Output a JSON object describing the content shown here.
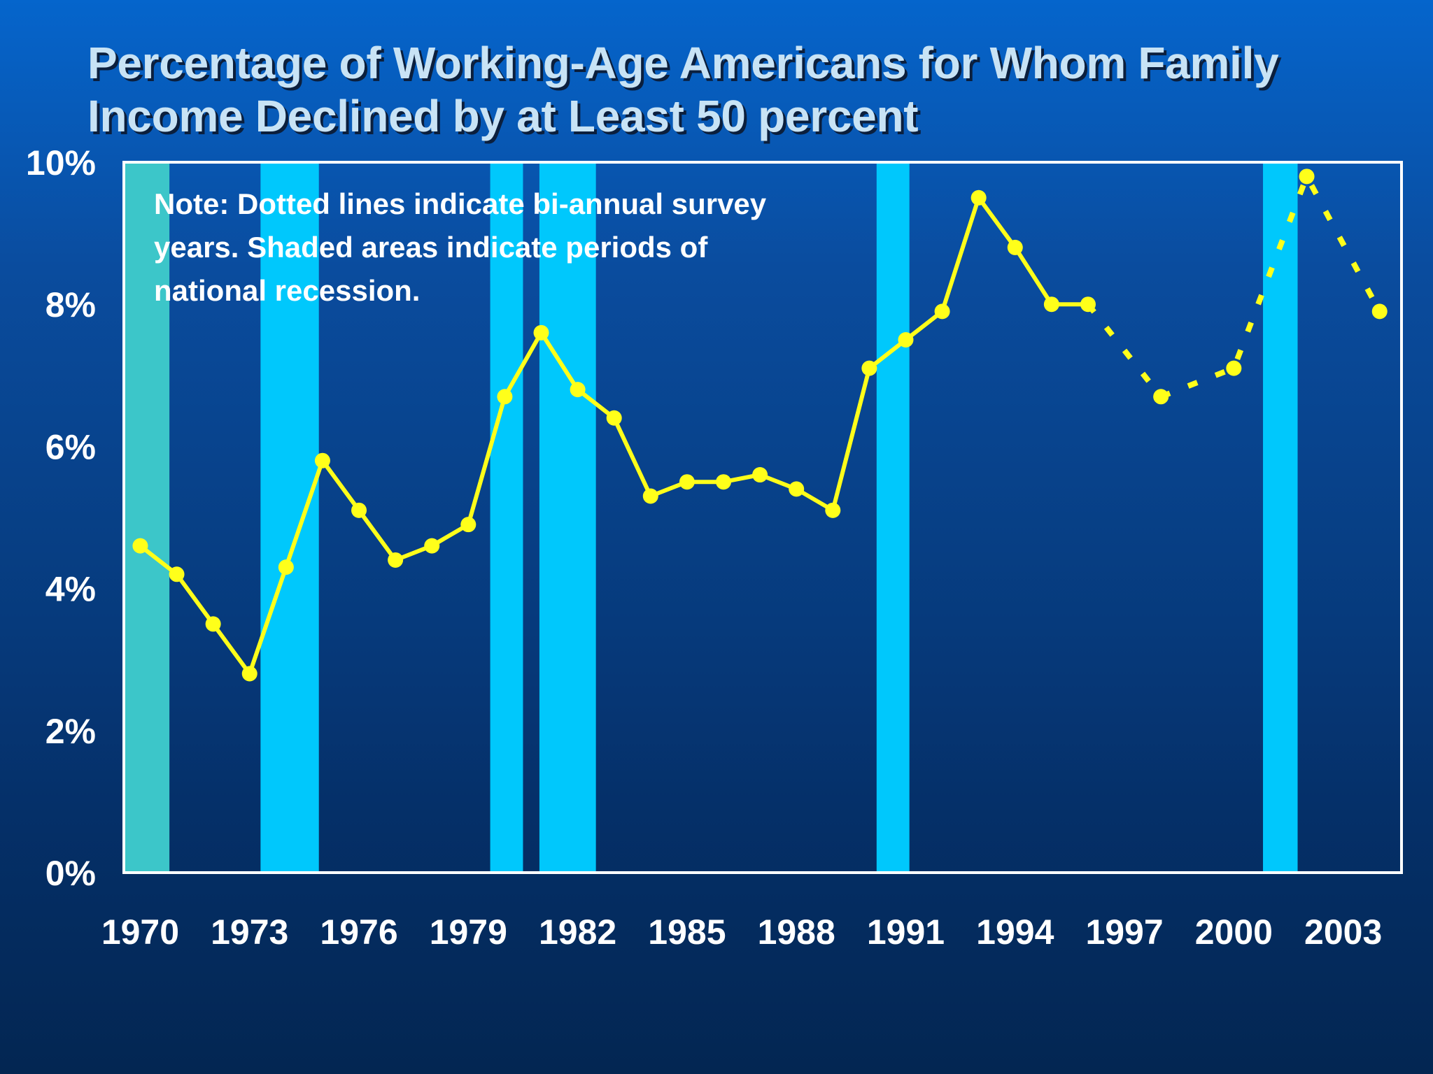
{
  "chart_data": {
    "type": "line",
    "title_lines": [
      "Percentage of Working-Age Americans for Whom Family",
      "Income Declined by at Least 50 percent"
    ],
    "note_lines": [
      "Note: Dotted lines indicate bi-annual survey",
      "years. Shaded areas indicate periods of",
      "national recession."
    ],
    "ylim": [
      0,
      10
    ],
    "xlim": [
      1969.55,
      2004.6
    ],
    "y_ticks": [
      {
        "value": 0,
        "label": "0%"
      },
      {
        "value": 2,
        "label": "2%"
      },
      {
        "value": 4,
        "label": "4%"
      },
      {
        "value": 6,
        "label": "6%"
      },
      {
        "value": 8,
        "label": "8%"
      },
      {
        "value": 10,
        "label": "10%"
      }
    ],
    "x_ticks": [
      {
        "value": 1970,
        "label": "1970"
      },
      {
        "value": 1973,
        "label": "1973"
      },
      {
        "value": 1976,
        "label": "1976"
      },
      {
        "value": 1979,
        "label": "1979"
      },
      {
        "value": 1982,
        "label": "1982"
      },
      {
        "value": 1985,
        "label": "1985"
      },
      {
        "value": 1988,
        "label": "1988"
      },
      {
        "value": 1991,
        "label": "1991"
      },
      {
        "value": 1994,
        "label": "1994"
      },
      {
        "value": 1997,
        "label": "1997"
      },
      {
        "value": 2000,
        "label": "2000"
      },
      {
        "value": 2003,
        "label": "2003"
      }
    ],
    "recessions": [
      {
        "start": 1969.55,
        "end": 1970.8,
        "color": "#3cc6c9"
      },
      {
        "start": 1973.3,
        "end": 1974.9,
        "color": "#00c8fc"
      },
      {
        "start": 1979.6,
        "end": 1980.5,
        "color": "#00c8fc"
      },
      {
        "start": 1980.95,
        "end": 1982.5,
        "color": "#00c8fc"
      },
      {
        "start": 1990.2,
        "end": 1991.1,
        "color": "#00c8fc"
      },
      {
        "start": 2000.8,
        "end": 2001.75,
        "color": "#00c8fc"
      }
    ],
    "series": [
      {
        "color": "#ffff1a",
        "points": [
          {
            "x": 1970,
            "y": 4.6
          },
          {
            "x": 1971,
            "y": 4.2
          },
          {
            "x": 1972,
            "y": 3.5
          },
          {
            "x": 1973,
            "y": 2.8
          },
          {
            "x": 1974,
            "y": 4.3
          },
          {
            "x": 1975,
            "y": 5.8
          },
          {
            "x": 1976,
            "y": 5.1
          },
          {
            "x": 1977,
            "y": 4.4
          },
          {
            "x": 1978,
            "y": 4.6
          },
          {
            "x": 1979,
            "y": 4.9
          },
          {
            "x": 1980,
            "y": 6.7
          },
          {
            "x": 1981,
            "y": 7.6
          },
          {
            "x": 1982,
            "y": 6.8
          },
          {
            "x": 1983,
            "y": 6.4
          },
          {
            "x": 1984,
            "y": 5.3
          },
          {
            "x": 1985,
            "y": 5.5
          },
          {
            "x": 1986,
            "y": 5.5
          },
          {
            "x": 1987,
            "y": 5.6
          },
          {
            "x": 1988,
            "y": 5.4
          },
          {
            "x": 1989,
            "y": 5.1
          },
          {
            "x": 1990,
            "y": 7.1
          },
          {
            "x": 1991,
            "y": 7.5
          },
          {
            "x": 1992,
            "y": 7.9
          },
          {
            "x": 1993,
            "y": 9.5
          },
          {
            "x": 1994,
            "y": 8.8
          },
          {
            "x": 1995,
            "y": 8.0
          },
          {
            "x": 1996,
            "y": 8.0
          },
          {
            "x": 1998,
            "y": 6.7
          },
          {
            "x": 2000,
            "y": 7.1
          },
          {
            "x": 2002,
            "y": 9.8
          },
          {
            "x": 2004,
            "y": 7.9
          }
        ],
        "dotted_after": 1996
      }
    ],
    "grid": false,
    "legend": "none"
  }
}
